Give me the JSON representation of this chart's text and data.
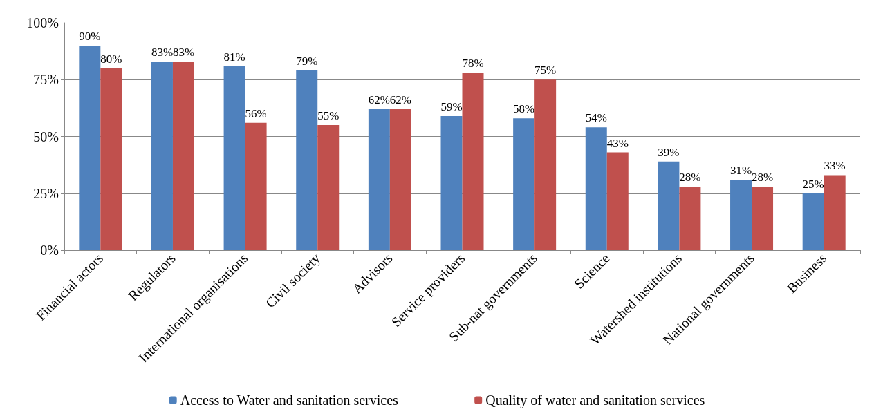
{
  "chart_data": {
    "type": "bar",
    "categories": [
      "Financial actors",
      "Regulators",
      "International organisations",
      "Civil society",
      "Advisors",
      "Service providers",
      "Sub-nat governments",
      "Science",
      "Watershed institutions",
      "National governments",
      "Business"
    ],
    "series": [
      {
        "name": "Access to Water and sanitation services",
        "color": "#4f81bd",
        "values": [
          90,
          83,
          81,
          79,
          62,
          59,
          58,
          54,
          39,
          31,
          25
        ],
        "value_labels": [
          "90%",
          "83%",
          "81%",
          "79%",
          "62%",
          "59%",
          "58%",
          "54%",
          "39%",
          "31%",
          "25%"
        ]
      },
      {
        "name": "Quality of water and sanitation services",
        "color": "#c0504d",
        "values": [
          80,
          83,
          56,
          55,
          62,
          78,
          75,
          43,
          28,
          28,
          33
        ],
        "value_labels": [
          "80%",
          "83%",
          "56%",
          "55%",
          "62%",
          "78%",
          "75%",
          "43%",
          "28%",
          "28%",
          "33%"
        ]
      }
    ],
    "ylim": [
      0,
      100
    ],
    "yticks": [
      {
        "value": 0,
        "label": "0%"
      },
      {
        "value": 25,
        "label": "25%"
      },
      {
        "value": 50,
        "label": "50%"
      },
      {
        "value": 75,
        "label": "75%"
      },
      {
        "value": 100,
        "label": "100%"
      }
    ],
    "grid": "y",
    "legend": "bottom"
  }
}
